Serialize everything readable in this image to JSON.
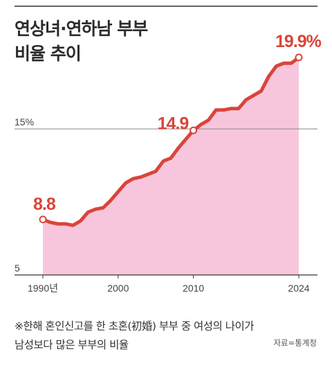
{
  "chart_data": {
    "type": "area",
    "title": [
      "연상녀·연하남 부부",
      "비율 추이"
    ],
    "x_tick_labels": [
      "1990년",
      "2000",
      "2010",
      "2024"
    ],
    "y_tick_labels": [
      "15%",
      "5"
    ],
    "ylim": [
      5,
      20.7
    ],
    "xlim": [
      1990,
      2024
    ],
    "annotations": [
      {
        "x": 1990,
        "y": 8.8,
        "label": "8.8"
      },
      {
        "x": 2010,
        "y": 14.9,
        "label": "14.9"
      },
      {
        "x": 2024,
        "y": 19.9,
        "label": "19.9%"
      }
    ],
    "x": [
      1990,
      1991,
      1992,
      1993,
      1994,
      1995,
      1996,
      1997,
      1998,
      1999,
      2000,
      2001,
      2002,
      2003,
      2004,
      2005,
      2006,
      2007,
      2008,
      2009,
      2010,
      2011,
      2012,
      2013,
      2014,
      2015,
      2016,
      2017,
      2018,
      2019,
      2020,
      2021,
      2022,
      2023,
      2024
    ],
    "values": [
      8.8,
      8.6,
      8.5,
      8.5,
      8.4,
      8.7,
      9.3,
      9.5,
      9.6,
      10.1,
      10.7,
      11.3,
      11.6,
      11.7,
      11.9,
      12.1,
      12.8,
      13.0,
      13.7,
      14.3,
      14.9,
      15.3,
      15.6,
      16.3,
      16.3,
      16.4,
      16.4,
      17.0,
      17.3,
      17.6,
      18.6,
      19.3,
      19.5,
      19.5,
      19.9
    ],
    "colors": {
      "line": "#d9453a",
      "fill": "#f7c6dc",
      "gridline": "#888888"
    }
  },
  "footnote": "※한해 혼인신고를 한 초혼(初婚) 부부 중 여성의 나이가\n  남성보다 많은 부부의 비율",
  "source": "자료=통계청"
}
